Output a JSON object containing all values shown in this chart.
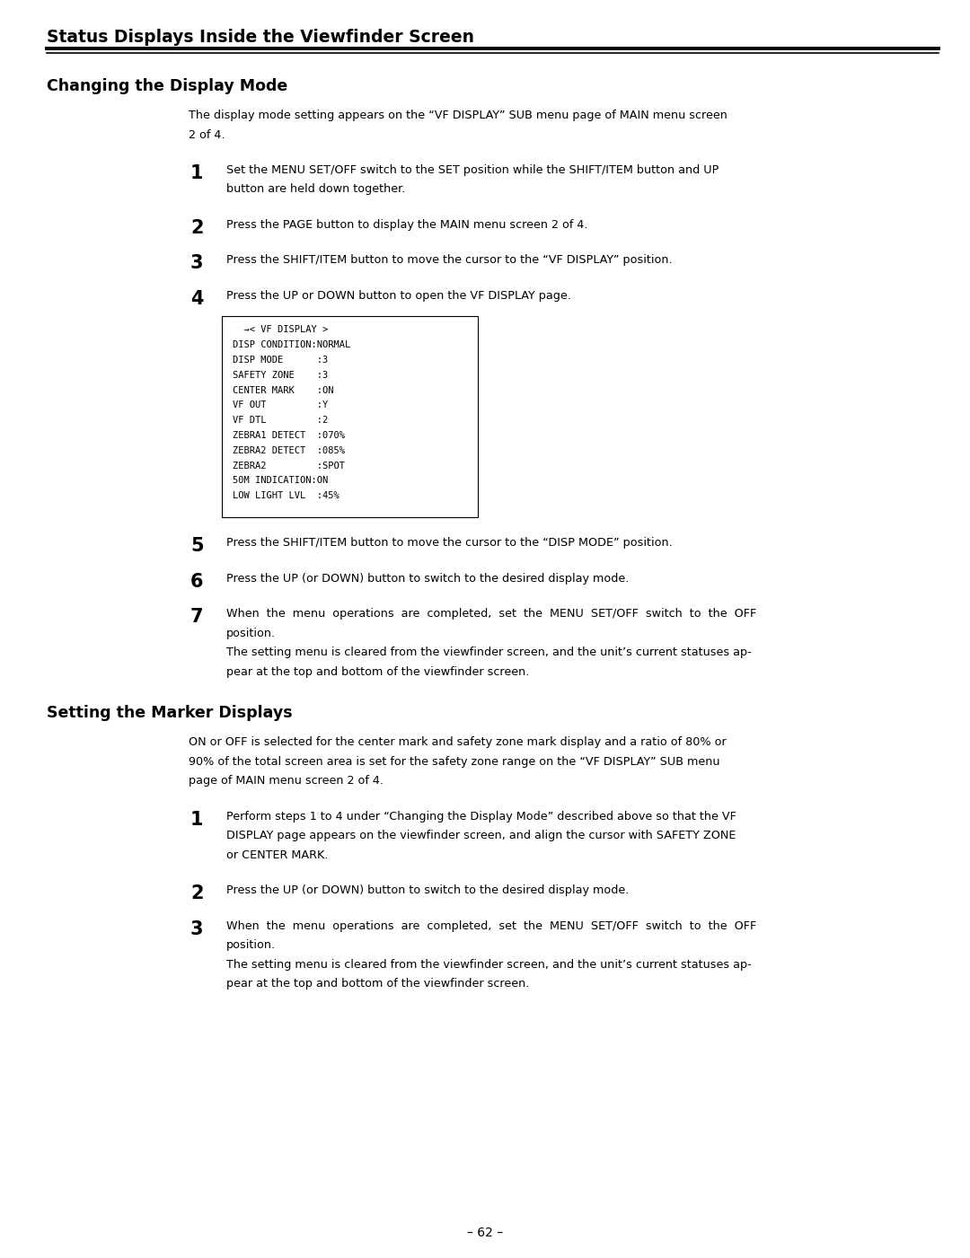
{
  "page_width": 10.8,
  "page_height": 14.01,
  "bg_color": "#ffffff",
  "main_title": "Status Displays Inside the Viewfinder Screen",
  "section1_title": "Changing the Display Mode",
  "section2_title": "Setting the Marker Displays",
  "section1_intro": "The display mode setting appears on the “VF DISPLAY” SUB menu page of MAIN menu screen\n2 of 4.",
  "section2_intro": "ON or OFF is selected for the center mark and safety zone mark display and a ratio of 80% or\n90% of the total screen area is set for the safety zone range on the “VF DISPLAY” SUB menu\npage of MAIN menu screen 2 of 4.",
  "steps1": [
    {
      "num": "1",
      "text": "Set the MENU SET/OFF switch to the SET position while the SHIFT/ITEM button and UP\nbutton are held down together."
    },
    {
      "num": "2",
      "text": "Press the PAGE button to display the MAIN menu screen 2 of 4."
    },
    {
      "num": "3",
      "text": "Press the SHIFT/ITEM button to move the cursor to the “VF DISPLAY” position."
    },
    {
      "num": "4",
      "text": "Press the UP or DOWN button to open the VF DISPLAY page."
    },
    {
      "num": "5",
      "text": "Press the SHIFT/ITEM button to move the cursor to the “DISP MODE” position."
    },
    {
      "num": "6",
      "text": "Press the UP (or DOWN) button to switch to the desired display mode."
    },
    {
      "num": "7",
      "text": "When  the  menu  operations  are  completed,  set  the  MENU  SET/OFF  switch  to  the  OFF\nposition.\nThe setting menu is cleared from the viewfinder screen, and the unit’s current statuses ap-\npear at the top and bottom of the viewfinder screen."
    }
  ],
  "steps2": [
    {
      "num": "1",
      "text": "Perform steps 1 to 4 under “Changing the Display Mode” described above so that the VF\nDISPLAY page appears on the viewfinder screen, and align the cursor with SAFETY ZONE\nor CENTER MARK."
    },
    {
      "num": "2",
      "text": "Press the UP (or DOWN) button to switch to the desired display mode."
    },
    {
      "num": "3",
      "text": "When  the  menu  operations  are  completed,  set  the  MENU  SET/OFF  switch  to  the  OFF\nposition.\nThe setting menu is cleared from the viewfinder screen, and the unit’s current statuses ap-\npear at the top and bottom of the viewfinder screen."
    }
  ],
  "menu_box_lines": [
    "  →< VF DISPLAY >",
    "DISP CONDITION:NORMAL",
    "DISP MODE      :3",
    "SAFETY ZONE    :3",
    "CENTER MARK    :ON",
    "VF OUT         :Y",
    "VF DTL         :2",
    "ZEBRA1 DETECT  :070%",
    "ZEBRA2 DETECT  :085%",
    "ZEBRA2         :SPOT",
    "50M INDICATION:ON",
    "LOW LIGHT LVL  :45%"
  ],
  "page_number": "– 62 –",
  "lm": 0.52,
  "rm": 0.35,
  "indent1": 2.1,
  "indent2": 2.52,
  "text_color": "#000000",
  "title_fontsize": 13.5,
  "section_fontsize": 12.5,
  "body_fontsize": 9.2,
  "step_num_fontsize": 15.0,
  "mono_fontsize": 7.5
}
